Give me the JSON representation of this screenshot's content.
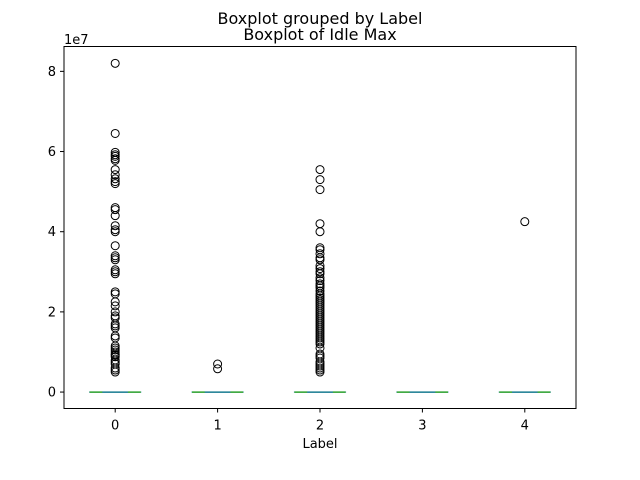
{
  "chart_data": {
    "type": "boxplot",
    "suptitle": "Boxplot grouped by Label",
    "title": "Boxplot of Idle Max",
    "xlabel": "Label",
    "ylabel": "",
    "y_offset_text": "1e7",
    "y_scale_factor": 10000000,
    "ylim": [
      -4100000,
      86200000
    ],
    "y_ticks": [
      0,
      20000000,
      40000000,
      60000000,
      80000000
    ],
    "y_tick_labels": [
      "0",
      "2",
      "4",
      "6",
      "8"
    ],
    "categories": [
      "0",
      "1",
      "2",
      "3",
      "4"
    ],
    "boxes": [
      {
        "category": "0",
        "median": 0,
        "q1": 0,
        "q3": 0,
        "whisker_low": 0,
        "whisker_high": 0,
        "outliers": [
          82000000,
          64500000,
          59800000,
          59200000,
          58800000,
          58200000,
          57800000,
          55500000,
          54200000,
          53200000,
          52500000,
          52000000,
          46000000,
          45500000,
          44000000,
          41500000,
          40500000,
          40000000,
          36500000,
          34000000,
          33500000,
          33000000,
          30500000,
          30000000,
          29500000,
          25000000,
          24500000,
          22500000,
          21500000,
          20000000,
          19000000,
          18500000,
          17000000,
          16500000,
          16000000,
          14000000,
          13500000,
          11500000,
          11000000,
          10500000,
          10000000,
          9500000,
          9200000,
          8800000,
          8000000,
          7500000,
          7000000,
          6000000,
          5500000,
          5000000
        ]
      },
      {
        "category": "1",
        "median": 0,
        "q1": 0,
        "q3": 0,
        "whisker_low": 0,
        "whisker_high": 0,
        "outliers": [
          7000000,
          5800000
        ]
      },
      {
        "category": "2",
        "median": 0,
        "q1": 0,
        "q3": 0,
        "whisker_low": 0,
        "whisker_high": 0,
        "outliers": [
          55500000,
          53000000,
          50500000,
          42000000,
          40000000,
          36000000,
          35500000,
          34500000,
          33500000,
          33000000,
          31500000,
          30800000,
          30000000,
          29500000,
          28500000,
          27800000,
          27000000,
          26500000,
          26000000,
          25200000,
          24500000,
          24000000,
          23500000,
          23000000,
          22500000,
          22000000,
          21500000,
          21000000,
          20500000,
          20000000,
          19500000,
          19000000,
          18500000,
          18000000,
          17500000,
          17000000,
          16500000,
          16000000,
          15500000,
          15000000,
          14500000,
          14000000,
          13500000,
          13000000,
          12500000,
          12000000,
          11000000,
          9500000,
          9000000,
          8500000,
          7500000,
          7000000,
          6500000,
          6000000,
          5500000,
          5000000
        ]
      },
      {
        "category": "3",
        "median": 0,
        "q1": 0,
        "q3": 0,
        "whisker_low": 0,
        "whisker_high": 0,
        "outliers": []
      },
      {
        "category": "4",
        "median": 0,
        "q1": 0,
        "q3": 0,
        "whisker_low": 0,
        "whisker_high": 0,
        "outliers": [
          42500000
        ]
      }
    ],
    "grid": false,
    "legend": "none",
    "box_color": "#1f77b4",
    "median_color": "#2ca02c",
    "flier_color": "#000000"
  }
}
